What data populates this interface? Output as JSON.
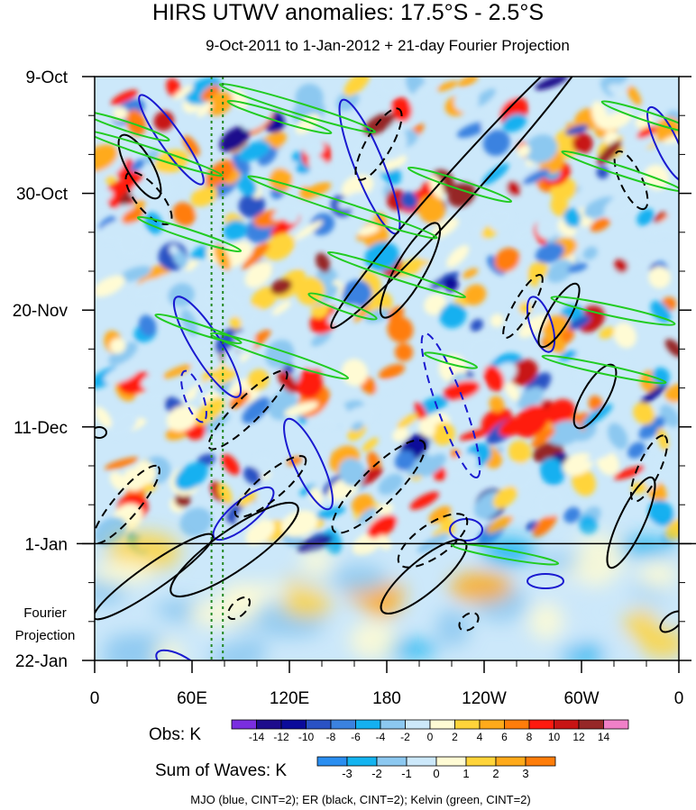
{
  "chart_data": {
    "type": "heatmap",
    "title": "HIRS UTWV anomalies: 17.5°S - 2.5°S",
    "subtitle": "9-Oct-2011 to 1-Jan-2012 + 21-day Fourier Projection",
    "x_ticks": [
      {
        "label": "0",
        "lon": 0
      },
      {
        "label": "60E",
        "lon": 60
      },
      {
        "label": "120E",
        "lon": 120
      },
      {
        "label": "180",
        "lon": 180
      },
      {
        "label": "120W",
        "lon": 240
      },
      {
        "label": "60W",
        "lon": 300
      },
      {
        "label": "0",
        "lon": 360
      }
    ],
    "xlim": [
      0,
      360
    ],
    "y_ticks": [
      {
        "label": "9-Oct",
        "day": 0
      },
      {
        "label": "30-Oct",
        "day": 21
      },
      {
        "label": "20-Nov",
        "day": 42
      },
      {
        "label": "11-Dec",
        "day": 63
      },
      {
        "label": "1-Jan",
        "day": 84
      },
      {
        "label": "22-Jan",
        "day": 105
      }
    ],
    "ylim_days": [
      0,
      105
    ],
    "observation_end_day": 84,
    "projection_label": [
      "Fourier",
      "Projection"
    ],
    "dotted_lines_lon": [
      72,
      79
    ],
    "obs_colorbar": {
      "label": "Obs: K",
      "levels": [
        "-14",
        "-12",
        "-10",
        "-8",
        "-6",
        "-4",
        "-2",
        "0",
        "2",
        "4",
        "6",
        "8",
        "10",
        "12",
        "14"
      ],
      "colors": [
        "#7a2ee0",
        "#1e0c8c",
        "#0b0b9a",
        "#2a52c4",
        "#3b82e0",
        "#14b0f0",
        "#8cc8f0",
        "#cce8fa",
        "#fffbd4",
        "#ffd43a",
        "#ffaa1a",
        "#ff7d0a",
        "#ff1a0f",
        "#c81414",
        "#962828",
        "#f080c8"
      ]
    },
    "waves_colorbar": {
      "label": "Sum of Waves: K",
      "levels": [
        "-3",
        "-2",
        "-1",
        "0",
        "1",
        "2",
        "3"
      ],
      "colors": [
        "#2a8ef0",
        "#14b4f0",
        "#8cc8f0",
        "#cce8fa",
        "#fffbd4",
        "#ffd43a",
        "#ffaa1a",
        "#ff7d0a"
      ]
    },
    "note": "MJO (blue, CINT=2); ER (black, CINT=2); Kelvin (green, CINT=2)",
    "contour_colors": {
      "mjo": "#1a1ad0",
      "er": "#000000",
      "kelvin": "#22cc22",
      "dotted": "#228822"
    }
  }
}
